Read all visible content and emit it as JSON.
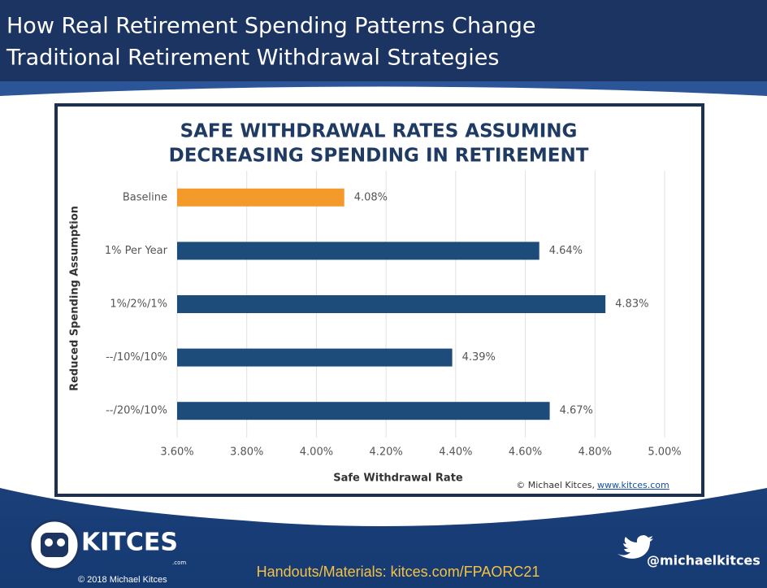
{
  "slide": {
    "title_lines": [
      "How Real Retirement Spending Patterns Change",
      "Traditional Retirement Withdrawal Strategies"
    ],
    "logo_text": "KITCES",
    "logo_sub": ".com",
    "copyright": "© 2018 Michael Kitces",
    "handouts": "Handouts/Materials: kitces.com/FPAORC21",
    "twitter": "@michaelkitces"
  },
  "chart_data": {
    "type": "hbar",
    "title": [
      "SAFE WITHDRAWAL RATES ASSUMING",
      "DECREASING SPENDING IN RETIREMENT"
    ],
    "x_label": "Safe Withdrawal Rate",
    "y_label": "Reduced Spending Assumption",
    "credit": "© Michael Kitces,",
    "credit_link": "www.kitces.com",
    "categories": [
      "Baseline",
      "1% Per Year",
      "1%/2%/1%",
      "--/10%/10%",
      "--/20%/10%"
    ],
    "values": [
      4.08,
      4.64,
      4.83,
      4.39,
      4.67
    ],
    "value_labels": [
      "4.08%",
      "4.64%",
      "4.83%",
      "4.39%",
      "4.67%"
    ],
    "colors": [
      "#f39a2b",
      "#1d4b7a",
      "#1d4b7a",
      "#1d4b7a",
      "#1d4b7a"
    ],
    "xlim": [
      3.6,
      5.0
    ],
    "xticks": [
      {
        "value": 3.6,
        "label": "3.60%"
      },
      {
        "value": 3.8,
        "label": "3.80%"
      },
      {
        "value": 4.0,
        "label": "4.00%"
      },
      {
        "value": 4.2,
        "label": "4.20%"
      },
      {
        "value": 4.4,
        "label": "4.40%"
      },
      {
        "value": 4.6,
        "label": "4.60%"
      },
      {
        "value": 4.8,
        "label": "4.80%"
      },
      {
        "value": 5.0,
        "label": "5.00%"
      }
    ],
    "grid": true
  }
}
